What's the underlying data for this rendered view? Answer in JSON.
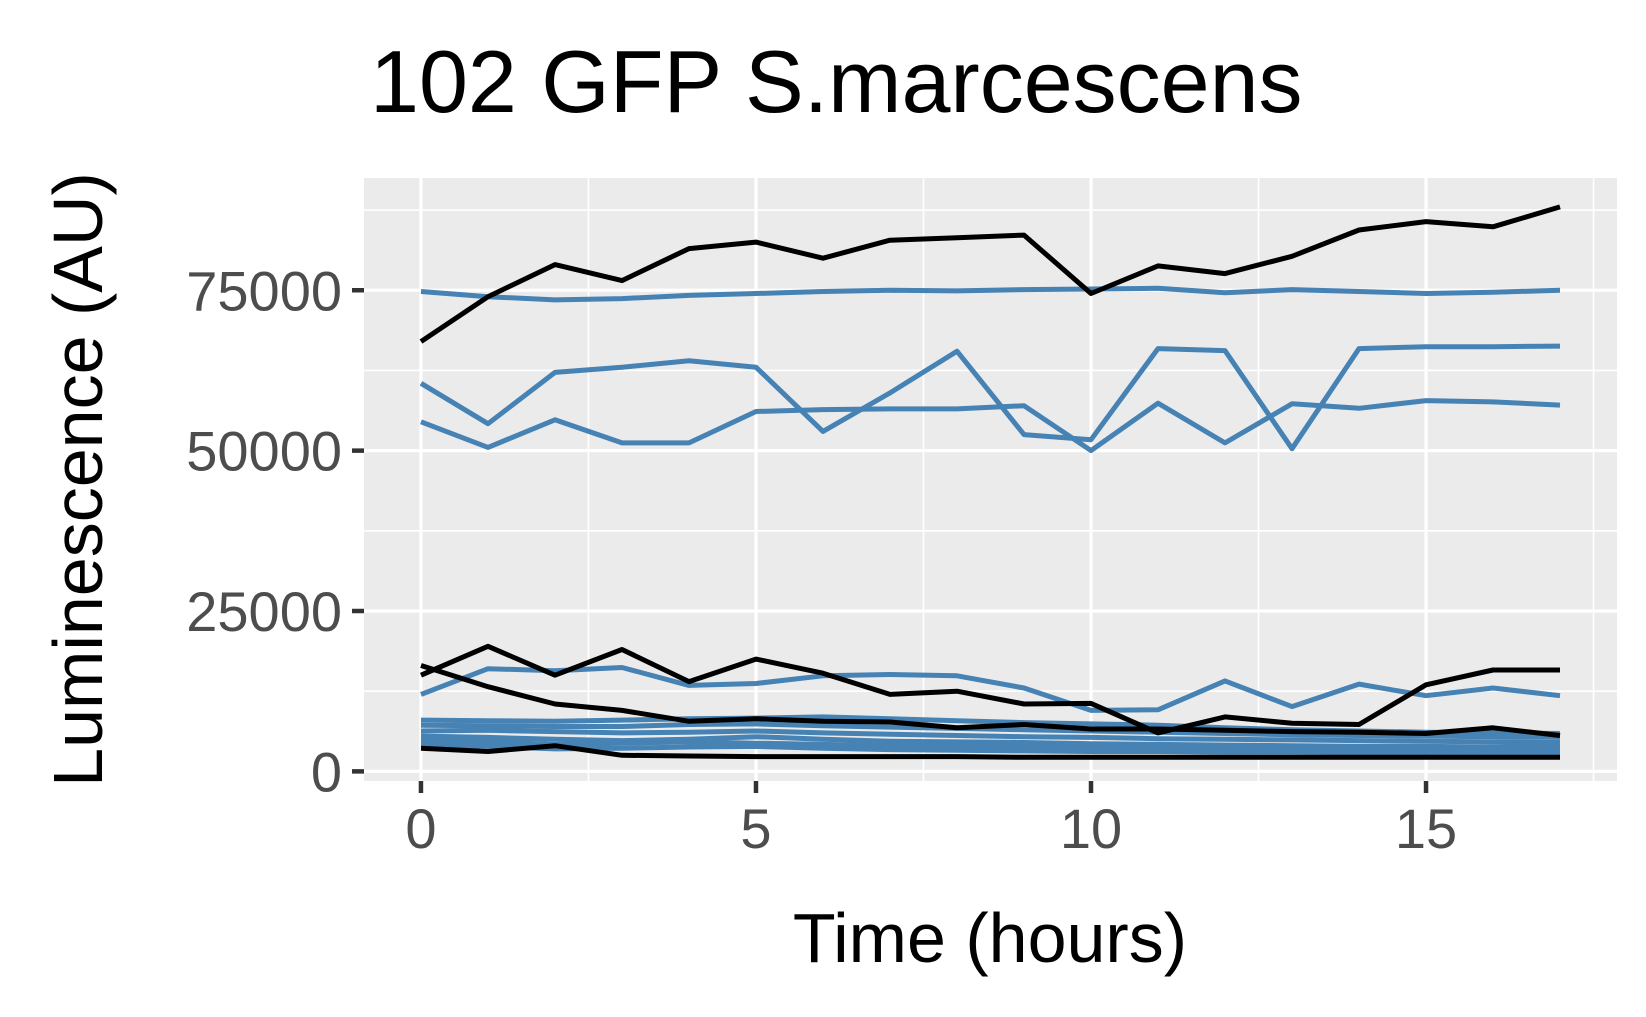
{
  "chart_data": {
    "type": "line",
    "title": "102 GFP S.marcescens",
    "xlabel": "Time (hours)",
    "ylabel": "Luminescence (AU)",
    "xlim": [
      -0.85,
      17.85
    ],
    "ylim": [
      -1500,
      92500
    ],
    "x_ticks": [
      0,
      5,
      10,
      15
    ],
    "x_tick_labels": [
      "0",
      "5",
      "10",
      "15"
    ],
    "y_ticks": [
      0,
      25000,
      50000,
      75000
    ],
    "y_tick_labels": [
      "0",
      "25000",
      "50000",
      "75000"
    ],
    "grid": true,
    "legend": "none",
    "colors": {
      "panel_background": "#ebebeb",
      "grid": "#ffffff",
      "axis_text": "#4d4d4d",
      "tick_mark": "#333333"
    },
    "x": [
      0,
      1,
      2,
      3,
      4,
      5,
      6,
      7,
      8,
      9,
      10,
      11,
      12,
      13,
      14,
      15,
      16,
      17
    ],
    "series": [
      {
        "color": "#4682b4",
        "values": [
          74800,
          74000,
          73500,
          73700,
          74200,
          74500,
          74800,
          75000,
          74900,
          75100,
          75200,
          75300,
          74600,
          75100,
          74800,
          74500,
          74700,
          75000
        ]
      },
      {
        "color": "#4682b4",
        "values": [
          60500,
          54200,
          62200,
          63000,
          64000,
          63000,
          53000,
          59000,
          65500,
          52500,
          51700,
          65900,
          65600,
          50300,
          65900,
          66200,
          66200,
          66300
        ]
      },
      {
        "color": "#4682b4",
        "values": [
          54500,
          50500,
          54800,
          51200,
          51200,
          56100,
          56400,
          56500,
          56500,
          57000,
          50000,
          57400,
          51200,
          57300,
          56600,
          57800,
          57600,
          57100
        ]
      },
      {
        "color": "#4682b4",
        "values": [
          12000,
          16000,
          15700,
          16200,
          13400,
          13700,
          14900,
          15100,
          14900,
          13000,
          9500,
          9600,
          14100,
          10100,
          13600,
          11800,
          13000,
          11800
        ]
      },
      {
        "color": "#4682b4",
        "values": [
          8000,
          7900,
          7800,
          8000,
          8200,
          8300,
          8500,
          8200,
          7900,
          7600,
          7400,
          7200,
          6800,
          6500,
          6300,
          6100,
          6000,
          5900
        ]
      },
      {
        "color": "#4682b4",
        "values": [
          7200,
          7100,
          7000,
          7000,
          7300,
          7400,
          7100,
          6900,
          6700,
          6500,
          6300,
          6100,
          5900,
          5700,
          5600,
          5500,
          5400,
          5300
        ]
      },
      {
        "color": "#4682b4",
        "values": [
          6300,
          6400,
          6200,
          6000,
          6100,
          6300,
          6000,
          5800,
          5600,
          5400,
          5300,
          5100,
          5000,
          4900,
          4800,
          4700,
          4600,
          4500
        ]
      },
      {
        "color": "#4682b4",
        "values": [
          5500,
          5300,
          5000,
          4800,
          5000,
          5400,
          5000,
          4700,
          4600,
          4500,
          4300,
          4200,
          4100,
          4000,
          3900,
          3900,
          3800,
          3800
        ]
      },
      {
        "color": "#4682b4",
        "values": [
          4800,
          4600,
          4200,
          4400,
          4600,
          4400,
          4200,
          4000,
          3900,
          3800,
          3700,
          3600,
          3600,
          3500,
          3500,
          3400,
          3400,
          3300
        ]
      },
      {
        "color": "#4682b4",
        "values": [
          4200,
          3900,
          3500,
          3600,
          3800,
          3900,
          3600,
          3400,
          3300,
          3200,
          3100,
          3100,
          3000,
          3000,
          2900,
          2900,
          2900,
          2800
        ]
      },
      {
        "color": "#000000",
        "values": [
          67000,
          74000,
          79000,
          76500,
          81500,
          82500,
          80000,
          82800,
          83200,
          83600,
          74500,
          78800,
          77600,
          80300,
          84400,
          85700,
          84900,
          88000
        ]
      },
      {
        "color": "#000000",
        "values": [
          15000,
          19500,
          15000,
          19000,
          14000,
          17500,
          15300,
          12000,
          12500,
          10500,
          10600,
          6000,
          8500,
          7500,
          7300,
          13500,
          15800,
          15800
        ]
      },
      {
        "color": "#000000",
        "values": [
          16500,
          13200,
          10500,
          9500,
          7800,
          8200,
          7800,
          7700,
          6800,
          7300,
          6600,
          6600,
          6400,
          6200,
          6100,
          5900,
          6800,
          5600
        ]
      },
      {
        "color": "#000000",
        "values": [
          3600,
          3100,
          4000,
          2500,
          2400,
          2300,
          2300,
          2300,
          2300,
          2200,
          2200,
          2200,
          2200,
          2200,
          2200,
          2200,
          2200,
          2200
        ]
      }
    ]
  }
}
